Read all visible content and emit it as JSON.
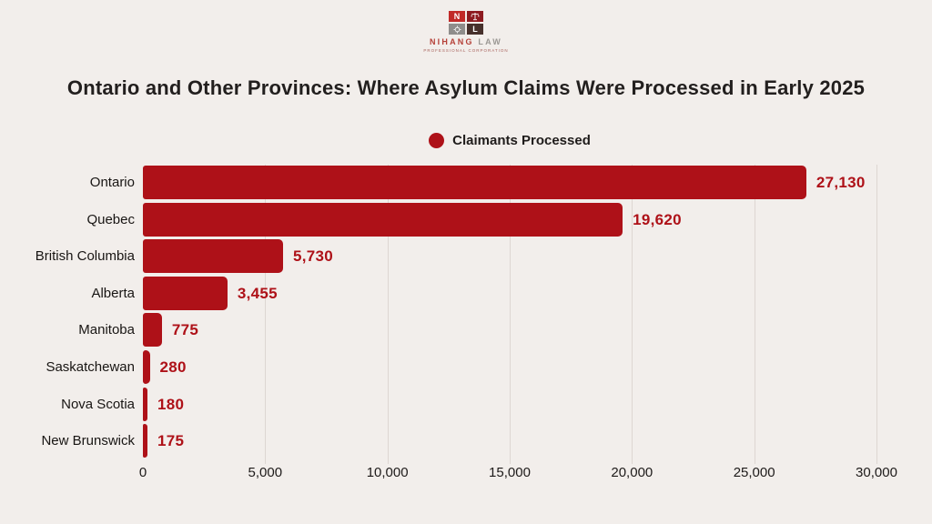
{
  "page": {
    "background": "#f2eeeb"
  },
  "logo": {
    "tile_n": "N",
    "tile_l": "L",
    "name_primary": "NIHANG",
    "name_secondary": "LAW",
    "subtitle": "PROFESSIONAL CORPORATION"
  },
  "title": "Ontario and Other Provinces: Where Asylum Claims Were Processed in Early 2025",
  "legend": {
    "label": "Claimants Processed"
  },
  "chart_data": {
    "type": "bar",
    "orientation": "horizontal",
    "title": "Ontario and Other Provinces: Where Asylum Claims Were Processed in Early 2025",
    "legend_entries": [
      "Claimants Processed"
    ],
    "legend_position": "top-center",
    "categories": [
      "Ontario",
      "Quebec",
      "British Columbia",
      "Alberta",
      "Manitoba",
      "Saskatchewan",
      "Nova Scotia",
      "New Brunswick"
    ],
    "values": [
      27130,
      19620,
      5730,
      3455,
      775,
      280,
      180,
      175
    ],
    "value_labels": [
      "27,130",
      "19,620",
      "5,730",
      "3,455",
      "775",
      "280",
      "180",
      "175"
    ],
    "xlim": [
      0,
      30000
    ],
    "x_ticks": [
      0,
      5000,
      10000,
      15000,
      20000,
      25000,
      30000
    ],
    "x_tick_labels": [
      "0",
      "5,000",
      "10,000",
      "15,000",
      "20,000",
      "25,000",
      "30,000"
    ],
    "grid": true,
    "xlabel": "",
    "ylabel": ""
  },
  "colors": {
    "background": "#f2eeeb",
    "bar": "#ae1118",
    "value_label": "#ae1118",
    "legend_dot": "#ae1118",
    "grid_line": "#ddd6d2",
    "text_dark": "#1f1c1b"
  }
}
